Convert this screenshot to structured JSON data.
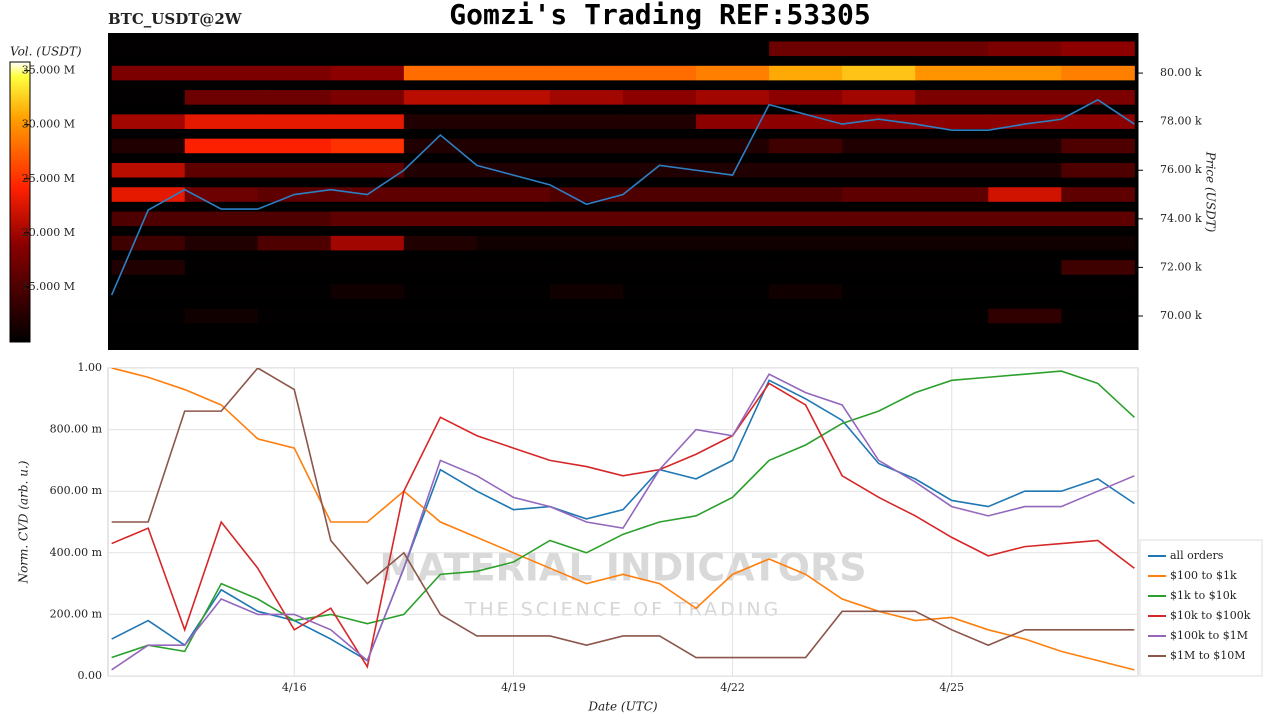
{
  "title": "Gomzi's Trading REF:53305",
  "watermark": {
    "brand": "MATERIAL INDICATORS",
    "tagline": "THE SCIENCE OF TRADING"
  },
  "chart_data": [
    {
      "type": "heatmap",
      "label": "BTC_USDT@2W",
      "colorbar_label": "Vol. (USDT)",
      "y2label": "Price (USDT)",
      "xlim": [
        13.45,
        27.55
      ],
      "y2lim": [
        68600,
        81650
      ],
      "y2ticks": [
        {
          "value": 70000,
          "label": "70.00 k"
        },
        {
          "value": 72000,
          "label": "72.00 k"
        },
        {
          "value": 74000,
          "label": "74.00 k"
        },
        {
          "value": 76000,
          "label": "76.00 k"
        },
        {
          "value": 78000,
          "label": "78.00 k"
        },
        {
          "value": 80000,
          "label": "80.00 k"
        }
      ],
      "zlim": [
        9900000,
        35800000
      ],
      "zticks": [
        {
          "value": 15000000,
          "label": "15.000 M"
        },
        {
          "value": 20000000,
          "label": "20.000 M"
        },
        {
          "value": 25000000,
          "label": "25.000 M"
        },
        {
          "value": 30000000,
          "label": "30.000 M"
        },
        {
          "value": 35000000,
          "label": "35.000 M"
        }
      ],
      "columns": [
        14,
        15,
        16,
        17,
        18,
        19,
        20,
        21,
        22,
        23,
        24,
        25,
        26,
        27
      ],
      "levels": [
        81000,
        80000,
        79000,
        78000,
        77000,
        76000,
        75000,
        74000,
        73000,
        72000,
        71000,
        70000
      ],
      "volumes": [
        [
          10000000,
          10000000,
          10000000,
          10000000,
          10000000,
          10000000,
          10000000,
          10000000,
          10000000,
          17000000,
          17000000,
          17000000,
          18000000,
          19000000
        ],
        [
          18000000,
          18000000,
          18000000,
          19000000,
          28000000,
          28000000,
          28000000,
          28000000,
          29000000,
          31000000,
          32000000,
          30000000,
          30000000,
          29000000
        ],
        [
          10000000,
          17000000,
          17000000,
          18000000,
          21000000,
          21000000,
          20000000,
          19000000,
          20000000,
          19000000,
          20000000,
          18000000,
          18000000,
          18000000
        ],
        [
          20000000,
          23000000,
          23000000,
          23000000,
          12000000,
          12000000,
          12000000,
          12000000,
          19000000,
          19000000,
          19000000,
          19000000,
          19000000,
          19000000
        ],
        [
          12000000,
          24000000,
          24000000,
          25000000,
          12000000,
          12000000,
          12000000,
          12000000,
          12000000,
          14000000,
          12000000,
          12000000,
          12000000,
          15000000
        ],
        [
          21000000,
          16000000,
          16000000,
          16000000,
          12000000,
          12000000,
          12000000,
          12000000,
          12000000,
          12000000,
          12000000,
          12000000,
          12000000,
          15000000
        ],
        [
          23000000,
          17000000,
          16000000,
          16000000,
          16000000,
          16000000,
          15000000,
          15000000,
          15000000,
          15000000,
          16000000,
          16000000,
          22000000,
          16000000
        ],
        [
          15000000,
          15000000,
          15000000,
          16000000,
          16000000,
          16000000,
          16000000,
          16000000,
          16000000,
          16000000,
          16000000,
          16000000,
          16000000,
          16000000
        ],
        [
          14000000,
          12000000,
          15000000,
          20000000,
          12000000,
          11000000,
          11000000,
          11000000,
          11000000,
          11000000,
          11000000,
          11000000,
          11000000,
          11000000
        ],
        [
          12000000,
          10000000,
          10000000,
          10000000,
          10000000,
          10000000,
          10000000,
          10000000,
          10000000,
          10000000,
          10000000,
          10000000,
          10000000,
          14000000
        ],
        [
          10000000,
          10000000,
          10000000,
          11000000,
          10000000,
          10000000,
          11000000,
          10000000,
          10000000,
          11000000,
          10000000,
          10000000,
          10000000,
          10000000
        ],
        [
          10000000,
          11000000,
          10000000,
          10000000,
          10000000,
          10000000,
          10000000,
          10000000,
          10000000,
          10000000,
          10000000,
          10000000,
          13000000,
          10000000
        ]
      ],
      "price": {
        "color": "#2e7fc2",
        "x": [
          13.5,
          14,
          14.5,
          15,
          15.5,
          16,
          16.5,
          17,
          17.5,
          18,
          18.5,
          19,
          19.5,
          20,
          20.5,
          21,
          21.5,
          22,
          22.5,
          23,
          23.5,
          24,
          24.5,
          25,
          25.5,
          26,
          26.5,
          27,
          27.5
        ],
        "values": [
          70860,
          74360,
          75200,
          74400,
          74400,
          75000,
          75200,
          75000,
          76000,
          77450,
          76200,
          75800,
          75400,
          74600,
          75000,
          76200,
          76000,
          75800,
          78700,
          78300,
          77900,
          78100,
          77900,
          77650,
          77650,
          77900,
          78100,
          78900,
          77900
        ]
      }
    },
    {
      "type": "line",
      "xlabel": "Date (UTC)",
      "ylabel": "Norm. CVD (arb. u.)",
      "xlim": [
        13.45,
        27.55
      ],
      "ylim": [
        0,
        1
      ],
      "grid": true,
      "legend": "right",
      "xticks": [
        {
          "value": 16,
          "label": "4/16"
        },
        {
          "value": 19,
          "label": "4/19"
        },
        {
          "value": 22,
          "label": "4/22"
        },
        {
          "value": 25,
          "label": "4/25"
        }
      ],
      "yticks": [
        {
          "value": 0,
          "label": "0.00"
        },
        {
          "value": 0.2,
          "label": "200.00 m"
        },
        {
          "value": 0.4,
          "label": "400.00 m"
        },
        {
          "value": 0.6,
          "label": "600.00 m"
        },
        {
          "value": 0.8,
          "label": "800.00 m"
        },
        {
          "value": 1,
          "label": "1.00"
        }
      ],
      "x": [
        13.5,
        14,
        14.5,
        15,
        15.5,
        16,
        16.5,
        17,
        17.5,
        18,
        18.5,
        19,
        19.5,
        20,
        20.5,
        21,
        21.5,
        22,
        22.5,
        23,
        23.5,
        24,
        24.5,
        25,
        25.5,
        26,
        26.5,
        27,
        27.5
      ],
      "series": [
        {
          "name": "all orders",
          "color": "#1f77b4",
          "values": [
            0.12,
            0.18,
            0.1,
            0.28,
            0.21,
            0.18,
            0.12,
            0.05,
            0.35,
            0.67,
            0.6,
            0.54,
            0.55,
            0.51,
            0.54,
            0.67,
            0.64,
            0.7,
            0.96,
            0.9,
            0.83,
            0.69,
            0.64,
            0.57,
            0.55,
            0.6,
            0.6,
            0.64,
            0.56
          ]
        },
        {
          "name": "$100 to $1k",
          "color": "#ff7f0e",
          "values": [
            1.0,
            0.97,
            0.93,
            0.88,
            0.77,
            0.74,
            0.5,
            0.5,
            0.6,
            0.5,
            0.45,
            0.4,
            0.35,
            0.3,
            0.33,
            0.3,
            0.22,
            0.33,
            0.38,
            0.33,
            0.25,
            0.21,
            0.18,
            0.19,
            0.15,
            0.12,
            0.08,
            0.05,
            0.02
          ]
        },
        {
          "name": "$1k to $10k",
          "color": "#2ca02c",
          "values": [
            0.06,
            0.1,
            0.08,
            0.3,
            0.25,
            0.18,
            0.2,
            0.17,
            0.2,
            0.33,
            0.34,
            0.37,
            0.44,
            0.4,
            0.46,
            0.5,
            0.52,
            0.58,
            0.7,
            0.75,
            0.82,
            0.86,
            0.92,
            0.96,
            0.97,
            0.98,
            0.99,
            0.95,
            0.84
          ]
        },
        {
          "name": "$10k to $100k",
          "color": "#d62728",
          "values": [
            0.43,
            0.48,
            0.15,
            0.5,
            0.35,
            0.15,
            0.22,
            0.03,
            0.6,
            0.84,
            0.78,
            0.74,
            0.7,
            0.68,
            0.65,
            0.67,
            0.72,
            0.78,
            0.95,
            0.88,
            0.65,
            0.58,
            0.52,
            0.45,
            0.39,
            0.42,
            0.43,
            0.44,
            0.35
          ]
        },
        {
          "name": "$100k to $1M",
          "color": "#9467bd",
          "values": [
            0.02,
            0.1,
            0.1,
            0.25,
            0.2,
            0.2,
            0.15,
            0.05,
            0.35,
            0.7,
            0.65,
            0.58,
            0.55,
            0.5,
            0.48,
            0.67,
            0.8,
            0.78,
            0.98,
            0.92,
            0.88,
            0.7,
            0.63,
            0.55,
            0.52,
            0.55,
            0.55,
            0.6,
            0.65
          ]
        },
        {
          "name": "$1M to $10M",
          "color": "#8c564b",
          "values": [
            0.5,
            0.5,
            0.86,
            0.86,
            1.0,
            0.93,
            0.44,
            0.3,
            0.4,
            0.2,
            0.13,
            0.13,
            0.13,
            0.1,
            0.13,
            0.13,
            0.06,
            0.06,
            0.06,
            0.06,
            0.21,
            0.21,
            0.21,
            0.15,
            0.1,
            0.15,
            0.15,
            0.15,
            0.15
          ]
        }
      ]
    }
  ]
}
